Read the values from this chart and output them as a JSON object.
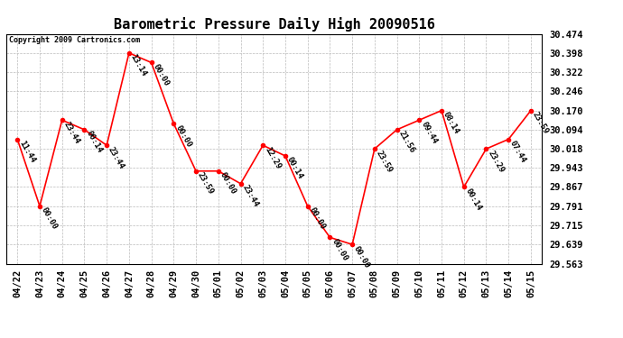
{
  "title": "Barometric Pressure Daily High 20090516",
  "copyright": "Copyright 2009 Cartronics.com",
  "x_labels": [
    "04/22",
    "04/23",
    "04/24",
    "04/25",
    "04/26",
    "04/27",
    "04/28",
    "04/29",
    "04/30",
    "05/01",
    "05/02",
    "05/03",
    "05/04",
    "05/05",
    "05/06",
    "05/07",
    "05/08",
    "05/09",
    "05/10",
    "05/11",
    "05/12",
    "05/13",
    "05/14",
    "05/15"
  ],
  "y_values": [
    30.056,
    29.791,
    30.132,
    30.094,
    30.032,
    30.398,
    30.36,
    30.118,
    29.93,
    29.93,
    29.88,
    30.032,
    29.99,
    29.791,
    29.667,
    29.639,
    30.018,
    30.094,
    30.132,
    30.17,
    29.867,
    30.018,
    30.056,
    30.17
  ],
  "time_labels": [
    "11:44",
    "00:00",
    "23:44",
    "00:14",
    "23:44",
    "13:14",
    "00:00",
    "00:00",
    "23:59",
    "00:00",
    "23:44",
    "12:29",
    "00:14",
    "00:00",
    "00:00",
    "00:00",
    "23:59",
    "21:56",
    "09:44",
    "08:14",
    "00:14",
    "23:29",
    "07:44",
    "23:59"
  ],
  "y_min": 29.563,
  "y_max": 30.474,
  "y_ticks": [
    29.563,
    29.639,
    29.715,
    29.791,
    29.867,
    29.943,
    30.018,
    30.094,
    30.17,
    30.246,
    30.322,
    30.398,
    30.474
  ],
  "line_color": "#ff0000",
  "marker_color": "#ff0000",
  "bg_color": "#ffffff",
  "plot_bg_color": "#ffffff",
  "grid_color": "#bbbbbb",
  "title_fontsize": 11,
  "tick_fontsize": 7.5,
  "annotation_fontsize": 6.5,
  "fig_width": 6.9,
  "fig_height": 3.75,
  "dpi": 100
}
